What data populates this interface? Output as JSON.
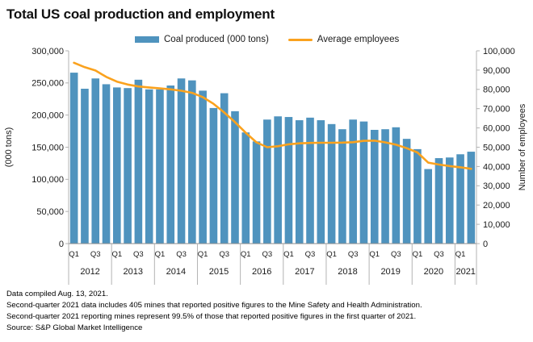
{
  "title": "Total US coal production and employment",
  "legend": {
    "bar_label": "Coal produced (000 tons)",
    "line_label": "Average employees"
  },
  "colors": {
    "bar": "#4F93BE",
    "line": "#FAA21E",
    "axis": "#b3b3b3",
    "baseline": "#8c8c8c",
    "text": "#1a1a1a"
  },
  "footer": {
    "lines": [
      "Data compiled Aug. 13, 2021.",
      "Second-quarter 2021 data includes 405 mines that reported positive figures to the Mine Safety and Health Administration.",
      "Second-quarter 2021 reporting mines represent 99.5% of those that reported positive figures in the first quarter of 2021.",
      "Source: S&P Global Market Intelligence"
    ]
  },
  "chart_data": {
    "type": "combo-bar-line",
    "title": "Total US coal production and employment",
    "categories": [
      "2012 Q1",
      "2012 Q2",
      "2012 Q3",
      "2012 Q4",
      "2013 Q1",
      "2013 Q2",
      "2013 Q3",
      "2013 Q4",
      "2014 Q1",
      "2014 Q2",
      "2014 Q3",
      "2014 Q4",
      "2015 Q1",
      "2015 Q2",
      "2015 Q3",
      "2015 Q4",
      "2016 Q1",
      "2016 Q2",
      "2016 Q3",
      "2016 Q4",
      "2017 Q1",
      "2017 Q2",
      "2017 Q3",
      "2017 Q4",
      "2018 Q1",
      "2018 Q2",
      "2018 Q3",
      "2018 Q4",
      "2019 Q1",
      "2019 Q2",
      "2019 Q3",
      "2019 Q4",
      "2020 Q1",
      "2020 Q2",
      "2020 Q3",
      "2020 Q4",
      "2021 Q1",
      "2021 Q2"
    ],
    "years": [
      {
        "label": "2012",
        "quarters": 4
      },
      {
        "label": "2013",
        "quarters": 4
      },
      {
        "label": "2014",
        "quarters": 4
      },
      {
        "label": "2015",
        "quarters": 4
      },
      {
        "label": "2016",
        "quarters": 4
      },
      {
        "label": "2017",
        "quarters": 4
      },
      {
        "label": "2018",
        "quarters": 4
      },
      {
        "label": "2019",
        "quarters": 4
      },
      {
        "label": "2020",
        "quarters": 4
      },
      {
        "label": "2021",
        "quarters": 2
      }
    ],
    "quarter_tick_labels": [
      "Q1",
      "Q3"
    ],
    "series": [
      {
        "name": "Coal produced (000 tons)",
        "type": "bar",
        "axis": "left",
        "values": [
          266000,
          241000,
          257000,
          248000,
          243000,
          242000,
          255000,
          240000,
          240000,
          246000,
          257000,
          254000,
          238000,
          211000,
          234000,
          206000,
          173000,
          159000,
          193000,
          198000,
          197000,
          192000,
          196000,
          192000,
          186000,
          178000,
          193000,
          190000,
          177000,
          178000,
          181000,
          163000,
          147000,
          116000,
          133000,
          134000,
          139000,
          143000
        ]
      },
      {
        "name": "Average employees",
        "type": "line",
        "axis": "right",
        "values": [
          93800,
          91500,
          89800,
          86500,
          84000,
          82500,
          81500,
          81000,
          80500,
          80000,
          79300,
          78200,
          76000,
          72500,
          68000,
          63000,
          57500,
          52500,
          50000,
          50500,
          51500,
          52000,
          52200,
          52300,
          52300,
          52400,
          52600,
          53300,
          53400,
          52500,
          51300,
          49500,
          47300,
          42000,
          41000,
          40200,
          39600,
          38800
        ]
      }
    ],
    "left_axis": {
      "label": "(000 tons)",
      "min": 0,
      "max": 300000,
      "step": 50000
    },
    "right_axis": {
      "label": "Number of employees",
      "min": 0,
      "max": 100000,
      "step": 10000
    },
    "grid": false,
    "legend_position": "top"
  }
}
